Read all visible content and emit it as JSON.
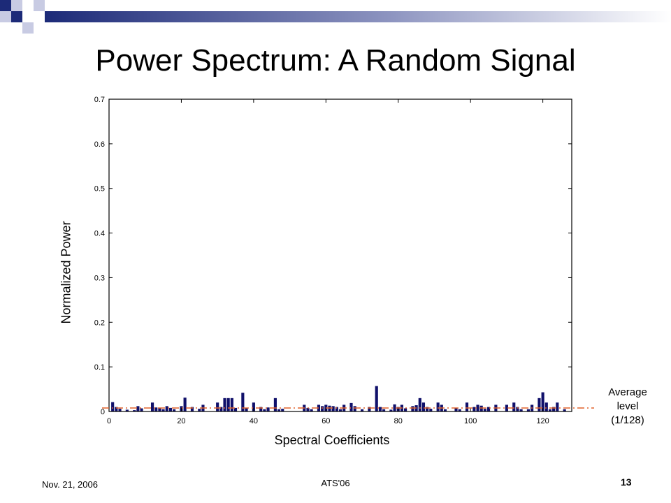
{
  "slide": {
    "title": "Power Spectrum: A Random Signal",
    "footer_date": "Nov. 21, 2006",
    "footer_center": "ATS'06",
    "page_number": "13"
  },
  "colors": {
    "bar": "#10106a",
    "average_line": "#e2622b",
    "accent": "#1c2a78"
  },
  "chart_data": {
    "type": "bar",
    "xlabel": "Spectral Coefficients",
    "ylabel": "Normalized Power",
    "xlim": [
      0,
      128
    ],
    "ylim": [
      0,
      0.7
    ],
    "xticks": [
      "0",
      "20",
      "40",
      "60",
      "80",
      "100",
      "120"
    ],
    "yticks": [
      "0",
      "0.1",
      "0.2",
      "0.3",
      "0.4",
      "0.5",
      "0.6",
      "0.7"
    ],
    "x": [
      1,
      2,
      3,
      5,
      7,
      8,
      9,
      12,
      13,
      14,
      15,
      16,
      17,
      18,
      20,
      21,
      23,
      25,
      26,
      30,
      31,
      32,
      33,
      34,
      35,
      37,
      38,
      40,
      42,
      43,
      44,
      46,
      47,
      48,
      54,
      55,
      56,
      58,
      59,
      60,
      61,
      62,
      63,
      64,
      65,
      67,
      68,
      70,
      72,
      74,
      75,
      76,
      78,
      79,
      80,
      81,
      82,
      84,
      85,
      86,
      87,
      88,
      89,
      91,
      92,
      93,
      96,
      97,
      99,
      101,
      102,
      103,
      104,
      105,
      107,
      110,
      112,
      113,
      114,
      116,
      117,
      119,
      120,
      121,
      122,
      123,
      124,
      126
    ],
    "values": [
      0.021,
      0.01,
      0.006,
      0.004,
      0.003,
      0.012,
      0.007,
      0.02,
      0.009,
      0.007,
      0.005,
      0.012,
      0.008,
      0.005,
      0.012,
      0.031,
      0.01,
      0.006,
      0.015,
      0.02,
      0.01,
      0.03,
      0.03,
      0.03,
      0.008,
      0.042,
      0.008,
      0.02,
      0.01,
      0.005,
      0.009,
      0.03,
      0.005,
      0.006,
      0.015,
      0.008,
      0.005,
      0.015,
      0.012,
      0.015,
      0.013,
      0.012,
      0.01,
      0.005,
      0.015,
      0.019,
      0.012,
      0.005,
      0.01,
      0.057,
      0.01,
      0.005,
      0.004,
      0.016,
      0.01,
      0.015,
      0.007,
      0.012,
      0.014,
      0.03,
      0.02,
      0.01,
      0.006,
      0.02,
      0.015,
      0.005,
      0.008,
      0.005,
      0.02,
      0.01,
      0.015,
      0.013,
      0.006,
      0.01,
      0.015,
      0.015,
      0.02,
      0.01,
      0.005,
      0.005,
      0.015,
      0.03,
      0.043,
      0.02,
      0.005,
      0.01,
      0.02,
      0.005
    ],
    "average_level": 0.0078125,
    "annotation": [
      "Average",
      "level",
      "(1/128)"
    ],
    "grid": false
  }
}
